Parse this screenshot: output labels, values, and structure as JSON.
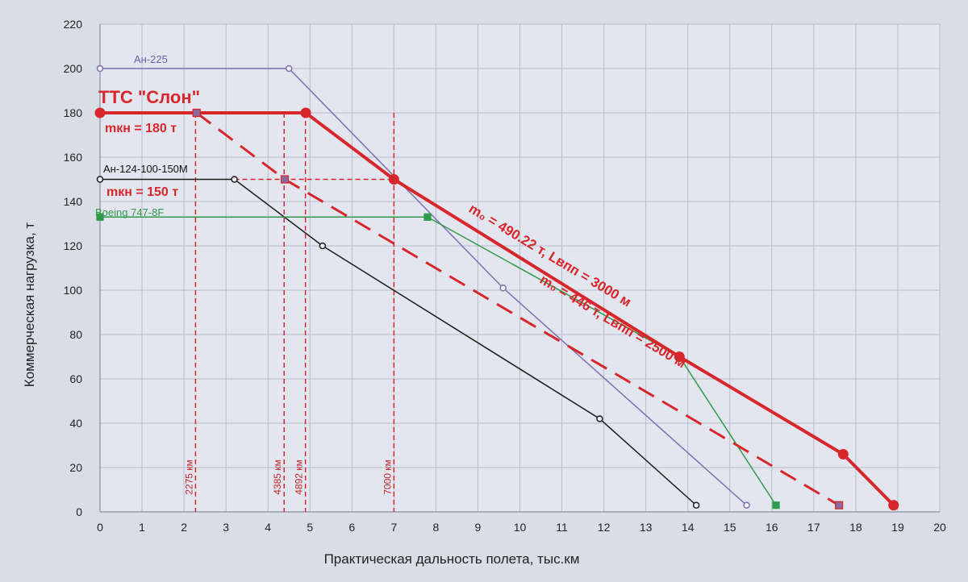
{
  "chart_data": {
    "type": "line",
    "title": "",
    "xlabel": "Практическая дальность полета, тыс.км",
    "ylabel": "Коммерческая нагрузка, т",
    "xlim": [
      0,
      20
    ],
    "ylim": [
      0,
      220
    ],
    "x_ticks": [
      0,
      1,
      2,
      3,
      4,
      5,
      6,
      7,
      8,
      9,
      10,
      11,
      12,
      13,
      14,
      15,
      16,
      17,
      18,
      19,
      20
    ],
    "y_ticks": [
      0,
      20,
      40,
      60,
      80,
      100,
      120,
      140,
      160,
      180,
      200,
      220
    ],
    "grid": true,
    "series": [
      {
        "name": "Ан-225",
        "color": "#7b6fb0",
        "style": "solid",
        "width": 1.5,
        "marker": "circle-open",
        "points": [
          [
            0,
            200
          ],
          [
            4.5,
            200
          ],
          [
            9.6,
            101
          ],
          [
            15.4,
            3
          ]
        ]
      },
      {
        "name": "Ан-124-100-150М",
        "color": "#1a1a1a",
        "style": "solid",
        "width": 1.5,
        "marker": "circle-open",
        "points": [
          [
            0,
            150
          ],
          [
            3.2,
            150
          ],
          [
            5.3,
            120
          ],
          [
            11.9,
            42
          ],
          [
            14.2,
            3
          ]
        ]
      },
      {
        "name": "Boeing 747-8F",
        "color": "#2f9a4a",
        "style": "solid",
        "width": 1.5,
        "marker": "square",
        "points": [
          [
            0,
            133
          ],
          [
            7.8,
            133
          ],
          [
            13.8,
            70
          ],
          [
            16.1,
            3
          ]
        ]
      },
      {
        "name": "",
        "color": "#d8262d",
        "style": "solid",
        "width": 4,
        "marker": "circle",
        "points": [
          [
            0,
            180
          ],
          [
            4.9,
            180
          ],
          [
            7.0,
            150
          ],
          [
            13.8,
            70
          ],
          [
            17.7,
            26
          ],
          [
            18.9,
            3
          ]
        ]
      },
      {
        "name": "",
        "color": "#d8262d",
        "style": "dashed",
        "width": 3,
        "marker": "square",
        "points": [
          [
            2.3,
            180
          ],
          [
            4.4,
            150
          ],
          [
            17.6,
            3
          ]
        ]
      }
    ],
    "reference_lines": {
      "vertical": [
        {
          "x": 2.275,
          "label": "2275 км"
        },
        {
          "x": 4.385,
          "label": "4385 км"
        },
        {
          "x": 4.892,
          "label": "4892 км"
        },
        {
          "x": 7.0,
          "label": "7000 км"
        }
      ],
      "horizontal": [
        {
          "y": 180,
          "x_from": 0,
          "x_to": 4.9
        },
        {
          "y": 150,
          "x_from": 3.2,
          "x_to": 7.0
        }
      ]
    },
    "annotations": {
      "title_tts": "ТТС \"Слон\"",
      "mkn180": "mкн = 180 т",
      "mkn150": "mкн = 150 т",
      "solid_line_label": "m₀ = 490.22 т, Lвпп = 3000 м",
      "dashed_line_label": "m₀ = 446 т, Lвпп = 2500 м"
    },
    "colors": {
      "plot_background": "#e3e6ee",
      "grid": "#b5bccc",
      "accent_red": "#d8262d"
    }
  }
}
